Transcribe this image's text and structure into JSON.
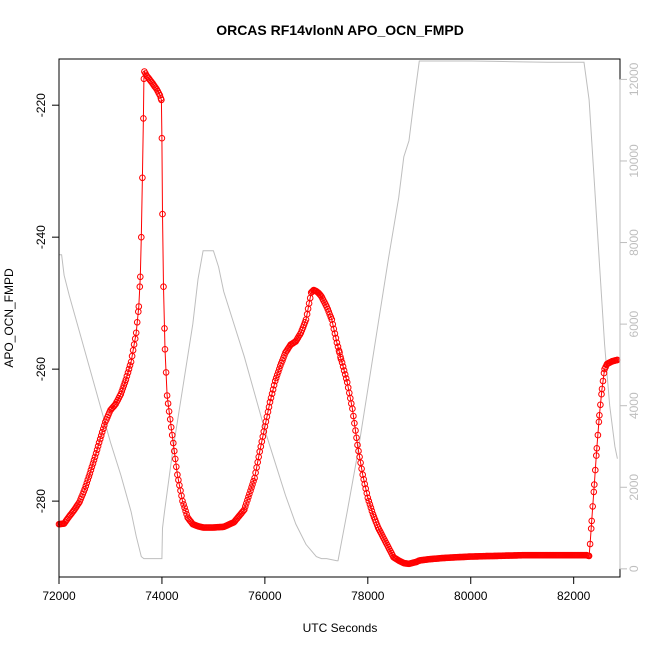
{
  "chart_data": {
    "type": "scatter",
    "title": "ORCAS RF14vlonN APO_OCN_FMPD",
    "xlabel": "UTC Seconds",
    "ylabel": "APO_OCN_FMPD",
    "xlim": [
      72000,
      82900
    ],
    "ylim": [
      -291.5,
      -213.0
    ],
    "y2lim": [
      -200,
      12500
    ],
    "x_ticks": [
      "72000",
      "74000",
      "76000",
      "78000",
      "80000",
      "82000"
    ],
    "y_ticks": [
      "-280",
      "-260",
      "-240",
      "-220"
    ],
    "y2_ticks": [
      "0",
      "2000",
      "4000",
      "6000",
      "8000",
      "10000",
      "12000"
    ],
    "grid": false,
    "legend": "none",
    "colors": {
      "primary": "#ff0000",
      "secondary": "#bebebe",
      "axis": "#000000"
    },
    "series": [
      {
        "axis": "left",
        "style": "points-and-line",
        "color": "#ff0000",
        "x": [
          72000,
          72100,
          72200,
          72300,
          72400,
          72500,
          72600,
          72700,
          72800,
          72900,
          73000,
          73100,
          73200,
          73300,
          73400,
          73500,
          73550,
          73580,
          73600,
          73620,
          73640,
          73650,
          73660,
          73700,
          73800,
          73900,
          73960,
          73990,
          74000,
          74010,
          74030,
          74060,
          74100,
          74200,
          74300,
          74400,
          74500,
          74600,
          74700,
          74800,
          74900,
          75000,
          75200,
          75400,
          75600,
          75800,
          75900,
          76000,
          76100,
          76200,
          76300,
          76400,
          76500,
          76600,
          76700,
          76800,
          76900,
          76950,
          77000,
          77050,
          77080,
          77100,
          77200,
          77300,
          77400,
          77450,
          77480,
          77500,
          77600,
          77700,
          77800,
          77900,
          78000,
          78100,
          78200,
          78300,
          78400,
          78500,
          78600,
          78700,
          78800,
          78900,
          78950,
          79000,
          79200,
          79500,
          80000,
          80500,
          81000,
          81500,
          82000,
          82200,
          82250,
          82300,
          82320,
          82350,
          82400,
          82450,
          82500,
          82550,
          82600,
          82650,
          82700,
          82750,
          82800,
          82850
        ],
        "y": [
          -283.5,
          -283.4,
          -282.3,
          -281.3,
          -280.1,
          -278.2,
          -275.8,
          -273.3,
          -270.6,
          -268.0,
          -266.2,
          -265.3,
          -263.8,
          -261.6,
          -258.9,
          -254.5,
          -250.5,
          -246.0,
          -240.0,
          -231.0,
          -222.0,
          -216.0,
          -214.9,
          -215.5,
          -216.5,
          -217.6,
          -218.5,
          -219.2,
          -225.0,
          -236.5,
          -247.5,
          -257.0,
          -264.0,
          -270.0,
          -276.0,
          -280.0,
          -282.5,
          -283.5,
          -283.8,
          -284.0,
          -284.0,
          -284.0,
          -283.9,
          -283.2,
          -281.3,
          -276.5,
          -272.5,
          -268.7,
          -265.0,
          -261.8,
          -259.5,
          -257.5,
          -256.3,
          -255.8,
          -254.5,
          -252.5,
          -248.4,
          -248.0,
          -248.2,
          -248.5,
          -248.8,
          -249.0,
          -250.5,
          -252.5,
          -256.0,
          -257.5,
          -258.5,
          -259.0,
          -262.0,
          -266.0,
          -271.5,
          -276.0,
          -279.5,
          -282.0,
          -284.0,
          -285.5,
          -287.0,
          -288.5,
          -289.0,
          -289.4,
          -289.5,
          -289.3,
          -289.2,
          -289.0,
          -288.8,
          -288.6,
          -288.4,
          -288.3,
          -288.2,
          -288.2,
          -288.2,
          -288.2,
          -288.2,
          -288.3,
          -286.5,
          -283.0,
          -277.5,
          -272.0,
          -267.0,
          -263.0,
          -260.0,
          -259.2,
          -259.0,
          -258.8,
          -258.7,
          -258.6
        ]
      },
      {
        "axis": "right",
        "style": "line",
        "color": "#bebebe",
        "x": [
          72000,
          72050,
          72100,
          72200,
          72400,
          72600,
          72800,
          73000,
          73200,
          73400,
          73500,
          73600,
          73650,
          73700,
          74000,
          74010,
          74050,
          74200,
          74400,
          74600,
          74700,
          74800,
          74950,
          75000,
          75100,
          75200,
          75400,
          75600,
          75800,
          76000,
          76200,
          76400,
          76600,
          76800,
          77000,
          77100,
          77200,
          77400,
          77420,
          77600,
          77800,
          78000,
          78200,
          78400,
          78600,
          78700,
          78800,
          78900,
          79000,
          79100,
          79500,
          80000,
          80500,
          81000,
          81500,
          82000,
          82200,
          82300,
          82400,
          82500,
          82600,
          82700,
          82800,
          82850
        ],
        "y": [
          7700,
          7700,
          7200,
          6700,
          5800,
          4900,
          4000,
          3100,
          2300,
          1400,
          800,
          300,
          250,
          250,
          250,
          1000,
          1400,
          2800,
          4400,
          6000,
          7100,
          7800,
          7800,
          7800,
          7400,
          6800,
          6000,
          5200,
          4300,
          3400,
          2600,
          1800,
          1100,
          600,
          300,
          250,
          250,
          200,
          200,
          1400,
          2800,
          4400,
          6000,
          7600,
          9100,
          10100,
          10500,
          11500,
          12450,
          12450,
          12450,
          12450,
          12440,
          12430,
          12420,
          12420,
          12420,
          11500,
          9500,
          7500,
          5500,
          4000,
          3000,
          2700
        ]
      }
    ]
  }
}
